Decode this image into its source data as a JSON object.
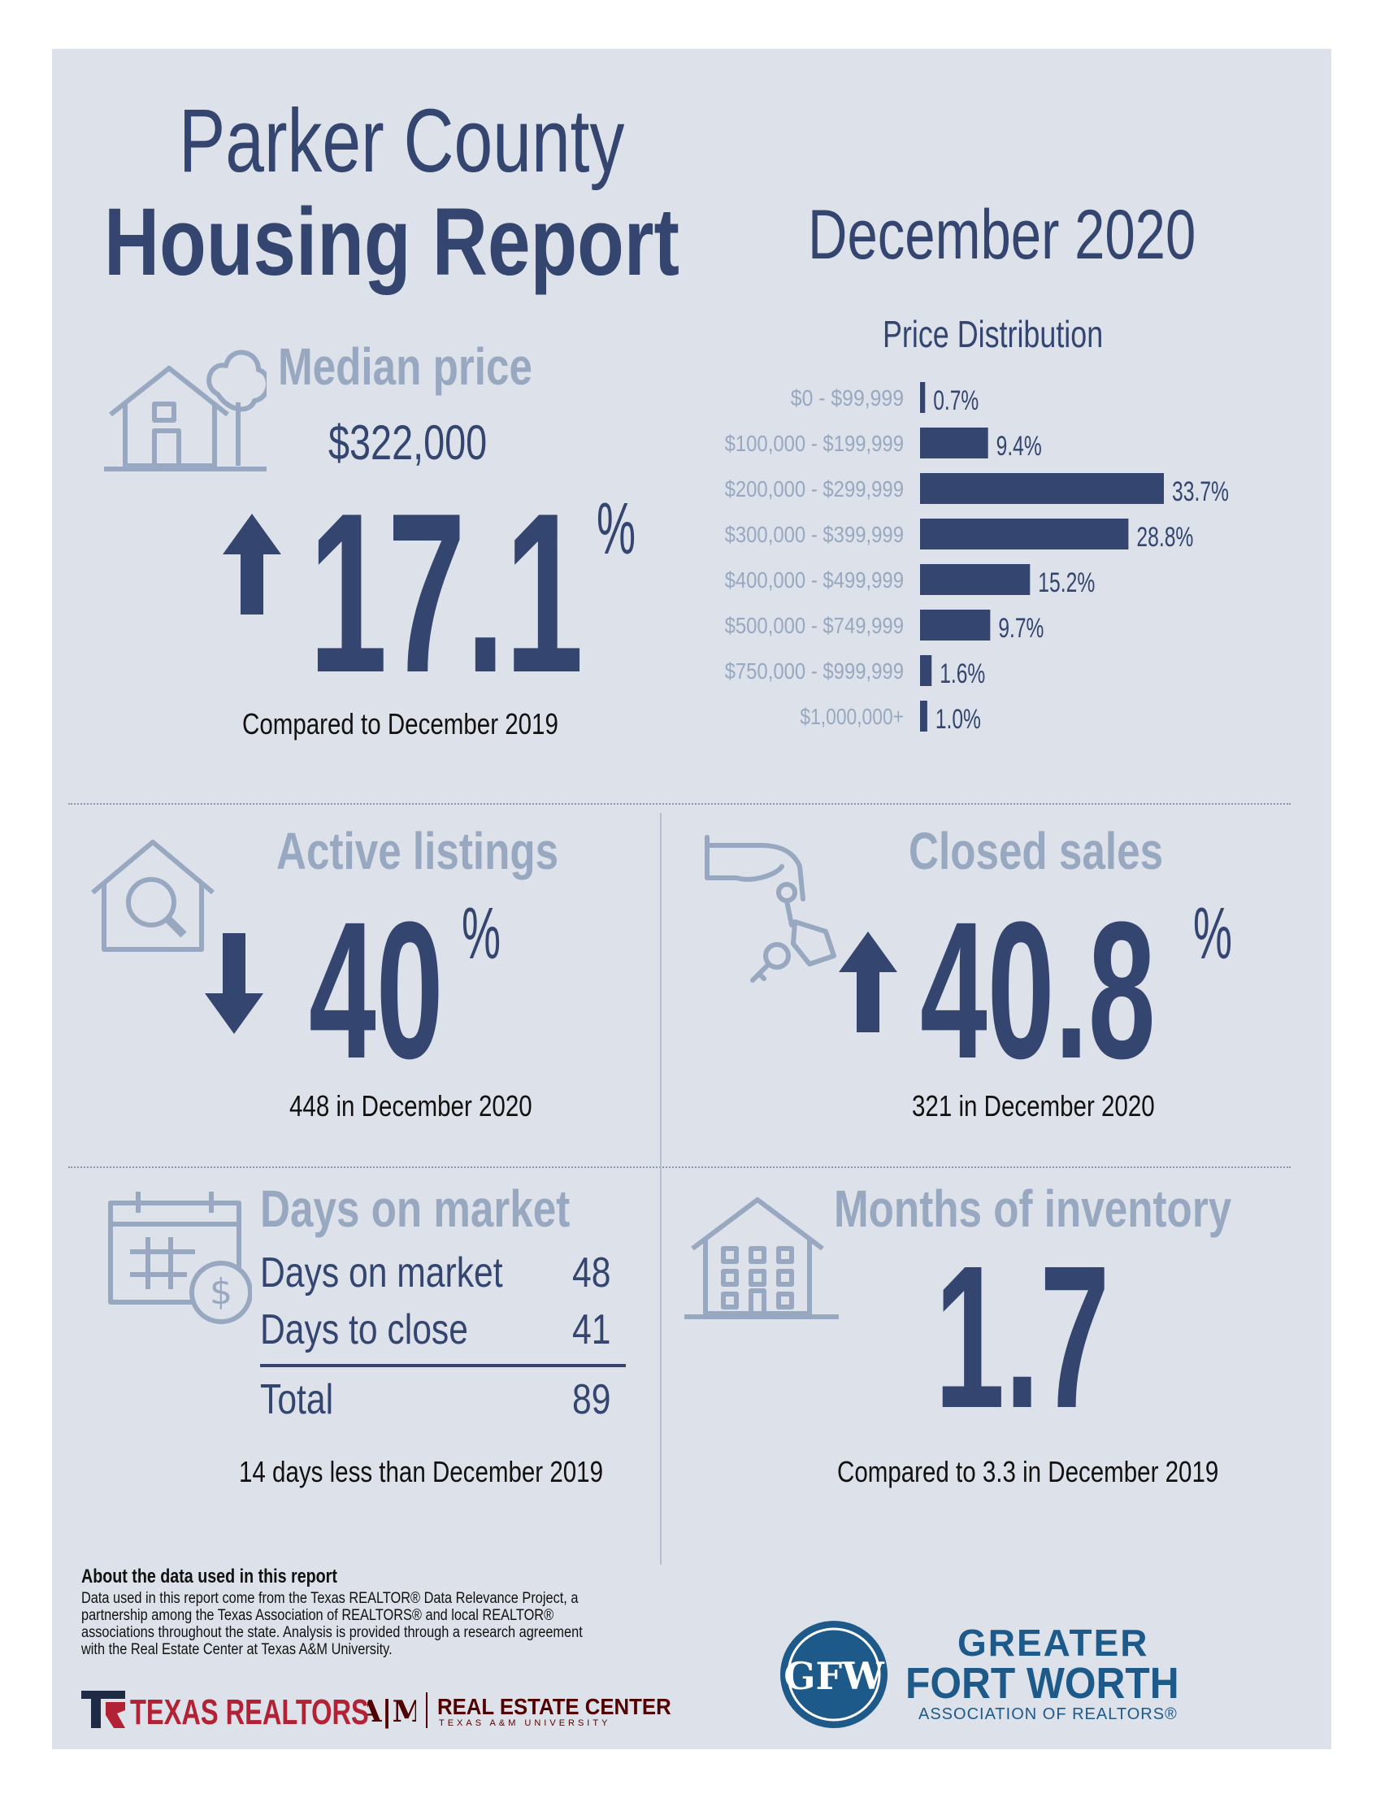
{
  "header": {
    "line1": "Parker County",
    "line2": "Housing Report",
    "period": "December 2020"
  },
  "median_price": {
    "title": "Median price",
    "value": "$322,000",
    "direction": "up",
    "change": "17.1",
    "pct": "%",
    "caption": "Compared to December 2019"
  },
  "price_distribution": {
    "title": "Price Distribution",
    "rows": [
      {
        "label": "$0 - $99,999",
        "value": "0.7%"
      },
      {
        "label": "$100,000 - $199,999",
        "value": "9.4%"
      },
      {
        "label": "$200,000 - $299,999",
        "value": "33.7%"
      },
      {
        "label": "$300,000 - $399,999",
        "value": "28.8%"
      },
      {
        "label": "$400,000 - $499,999",
        "value": "15.2%"
      },
      {
        "label": "$500,000 - $749,999",
        "value": "9.7%"
      },
      {
        "label": "$750,000 - $999,999",
        "value": "1.6%"
      },
      {
        "label": "$1,000,000+",
        "value": "1.0%"
      }
    ]
  },
  "chart_data": {
    "type": "bar",
    "orientation": "horizontal",
    "title": "Price Distribution",
    "categories": [
      "$0 - $99,999",
      "$100,000 - $199,999",
      "$200,000 - $299,999",
      "$300,000 - $399,999",
      "$400,000 - $499,999",
      "$500,000 - $749,999",
      "$750,000 - $999,999",
      "$1,000,000+"
    ],
    "values": [
      0.7,
      9.4,
      33.7,
      28.8,
      15.2,
      9.7,
      1.6,
      1.0
    ],
    "unit": "%",
    "grid": false
  },
  "active_listings": {
    "title": "Active listings",
    "direction": "down",
    "change": "40",
    "pct": "%",
    "caption": "448 in December 2020"
  },
  "closed_sales": {
    "title": "Closed sales",
    "direction": "up",
    "change": "40.8",
    "pct": "%",
    "caption": "321 in December 2020"
  },
  "days_on_market": {
    "title": "Days on market",
    "rows": [
      {
        "label": "Days on market",
        "value": "48"
      },
      {
        "label": "Days to close",
        "value": "41"
      }
    ],
    "total_label": "Total",
    "total_value": "89",
    "caption": "14 days less than December 2019"
  },
  "months_inventory": {
    "title": "Months of inventory",
    "value": "1.7",
    "caption": "Compared to 3.3 in December 2019"
  },
  "footer": {
    "about_title": "About the data used in this report",
    "about_lines": [
      "Data used in this report come from the Texas REALTOR® Data Relevance Project, a",
      "partnership among the Texas Association of REALTORS® and local REALTOR®",
      "associations throughout the state. Analysis is provided through a research agreement",
      "with the Real Estate Center at Texas A&M University."
    ],
    "texas_realtors": "TEXAS REALTORS",
    "rec_title": "REAL ESTATE CENTER",
    "rec_sub": "TEXAS A&M UNIVERSITY",
    "gfw_line1": "GREATER",
    "gfw_line2": "FORT WORTH",
    "gfw_line3": "ASSOCIATION OF REALTORS®"
  },
  "colors": {
    "navy": "#34466f",
    "slate": "#97a8c0",
    "background": "#dde1e9",
    "texas_red": "#b22234",
    "gfw_blue": "#1d5a8a"
  }
}
